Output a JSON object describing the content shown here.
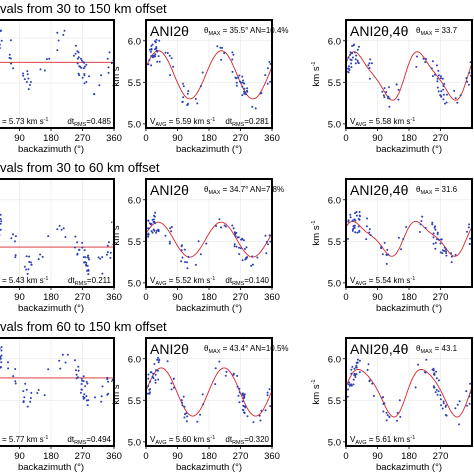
{
  "figure": {
    "row_titles": [
      "vals from 30 to 150 km offset",
      "vals from 30 to 60 km offset",
      "vals from 60 to 150 km offset"
    ],
    "xlabel": "backazimuth (°)",
    "ylabel": "km s",
    "ylabel_sup": "-1",
    "colors": {
      "points": "#2a3fb5",
      "fit": "#d9262b",
      "frame": "#000000"
    }
  },
  "chart_data": [
    {
      "type": "scatter",
      "row": 0,
      "col": 0,
      "model_label": "",
      "theta_text": "",
      "an_text": "",
      "vavg_prefix": "",
      "vavg_value": "= 5.73 km s",
      "vavg_sup": "-1",
      "dt_value": "dt",
      "dt_sub": "RMS",
      "dt_num": "=0.485",
      "xlim": [
        0,
        360
      ],
      "ylim": [
        5.0,
        6.2
      ],
      "xticks": [
        90,
        180,
        270,
        360
      ],
      "yticks": [],
      "fit": {
        "vavg": 5.73,
        "amp2": 0.0,
        "phase2": 0,
        "amp4": 0.0,
        "phase4": 0
      },
      "points_note": "scatter"
    },
    {
      "type": "scatter",
      "row": 0,
      "col": 1,
      "model_label": "ANI2θ",
      "theta_text": "θ",
      "theta_sub": "MAX",
      "theta_val": " = 35.5° AN=10.4%",
      "vavg_prefix": "V",
      "vavg_sub": "AVG",
      "vavg_value": "= 5.59 km s",
      "vavg_sup": "-1",
      "dt_value": "dt",
      "dt_sub": "RMS",
      "dt_num": "=0.281",
      "xlim": [
        0,
        360
      ],
      "ylim": [
        4.95,
        6.25
      ],
      "xticks": [
        0,
        90,
        180,
        270,
        360
      ],
      "yticks": [
        5.0,
        5.5,
        6.0
      ],
      "fit": {
        "vavg": 5.59,
        "amp2": 0.29,
        "phase2": 35.5,
        "amp4": 0.0,
        "phase4": 0
      }
    },
    {
      "type": "scatter",
      "row": 0,
      "col": 2,
      "model_label": "ANI2θ,4θ",
      "theta_text": "θ",
      "theta_sub": "MAX",
      "theta_val": " = 33.7",
      "vavg_prefix": "V",
      "vavg_sub": "AVG",
      "vavg_value": "= 5.58 km s",
      "vavg_sup": "-1",
      "dt_value": "",
      "dt_sub": "",
      "dt_num": "",
      "xlim": [
        0,
        360
      ],
      "ylim": [
        4.95,
        6.25
      ],
      "xticks": [
        0,
        90,
        180,
        270
      ],
      "yticks": [
        5.0,
        5.5,
        6.0
      ],
      "fit": {
        "vavg": 5.58,
        "amp2": 0.27,
        "phase2": 33.7,
        "amp4": 0.06,
        "phase4": 10
      }
    },
    {
      "type": "scatter",
      "row": 1,
      "col": 0,
      "model_label": "",
      "theta_text": "",
      "an_text": "",
      "vavg_prefix": "",
      "vavg_value": "= 5.43 km s",
      "vavg_sup": "-1",
      "dt_value": "dt",
      "dt_sub": "RMS",
      "dt_num": "=0.211",
      "xlim": [
        0,
        360
      ],
      "ylim": [
        4.95,
        6.25
      ],
      "xticks": [
        90,
        180,
        270,
        360
      ],
      "yticks": [],
      "fit": {
        "vavg": 5.43,
        "amp2": 0.0,
        "phase2": 0,
        "amp4": 0.0,
        "phase4": 0
      }
    },
    {
      "type": "scatter",
      "row": 1,
      "col": 1,
      "model_label": "ANI2θ",
      "theta_text": "θ",
      "theta_sub": "MAX",
      "theta_val": " = 34.7° AN=7.8%",
      "vavg_prefix": "V",
      "vavg_sub": "AVG",
      "vavg_value": "= 5.52 km s",
      "vavg_sup": "-1",
      "dt_value": "dt",
      "dt_sub": "RMS",
      "dt_num": "=0.140",
      "xlim": [
        0,
        360
      ],
      "ylim": [
        4.95,
        6.25
      ],
      "xticks": [
        0,
        90,
        180,
        270,
        360
      ],
      "yticks": [
        5.0,
        5.5,
        6.0
      ],
      "fit": {
        "vavg": 5.52,
        "amp2": 0.21,
        "phase2": 34.7,
        "amp4": 0.0,
        "phase4": 0
      }
    },
    {
      "type": "scatter",
      "row": 1,
      "col": 2,
      "model_label": "ANI2θ,4θ",
      "theta_text": "θ",
      "theta_sub": "MAX",
      "theta_val": " = 31.6",
      "vavg_prefix": "V",
      "vavg_sub": "AVG",
      "vavg_value": "= 5.54 km s",
      "vavg_sup": "-1",
      "dt_value": "",
      "dt_sub": "",
      "dt_num": "",
      "xlim": [
        0,
        360
      ],
      "ylim": [
        4.95,
        6.25
      ],
      "xticks": [
        0,
        90,
        180,
        270
      ],
      "yticks": [
        5.0,
        5.5,
        6.0
      ],
      "fit": {
        "vavg": 5.54,
        "amp2": 0.19,
        "phase2": 31.6,
        "amp4": 0.05,
        "phase4": 5
      }
    },
    {
      "type": "scatter",
      "row": 2,
      "col": 0,
      "model_label": "",
      "theta_text": "",
      "an_text": "",
      "vavg_prefix": "",
      "vavg_value": "= 5.77 km s",
      "vavg_sup": "-1",
      "dt_value": "dt",
      "dt_sub": "RMS",
      "dt_num": "=0.494",
      "xlim": [
        0,
        360
      ],
      "ylim": [
        4.95,
        6.25
      ],
      "xticks": [
        90,
        180,
        270,
        360
      ],
      "yticks": [],
      "fit": {
        "vavg": 5.77,
        "amp2": 0.0,
        "phase2": 0,
        "amp4": 0.0,
        "phase4": 0
      }
    },
    {
      "type": "scatter",
      "row": 2,
      "col": 1,
      "model_label": "ANI2θ",
      "theta_text": "θ",
      "theta_sub": "MAX",
      "theta_val": " = 43.4° AN=10.5%",
      "vavg_prefix": "V",
      "vavg_sub": "AVG",
      "vavg_value": "= 5.60 km s",
      "vavg_sup": "-1",
      "dt_value": "dt",
      "dt_sub": "RMS",
      "dt_num": "=0.320",
      "xlim": [
        0,
        360
      ],
      "ylim": [
        4.95,
        6.25
      ],
      "xticks": [
        0,
        90,
        180,
        270,
        360
      ],
      "yticks": [
        5.0,
        5.5,
        6.0
      ],
      "fit": {
        "vavg": 5.6,
        "amp2": 0.29,
        "phase2": 43.4,
        "amp4": 0.0,
        "phase4": 0
      }
    },
    {
      "type": "scatter",
      "row": 2,
      "col": 2,
      "model_label": "ANI2θ,4θ",
      "theta_text": "θ",
      "theta_sub": "MAX",
      "theta_val": " = 43.1",
      "vavg_prefix": "V",
      "vavg_sub": "AVG",
      "vavg_value": "= 5.61 km s",
      "vavg_sup": "-1",
      "dt_value": "",
      "dt_sub": "",
      "dt_num": "",
      "xlim": [
        0,
        360
      ],
      "ylim": [
        4.95,
        6.25
      ],
      "xticks": [
        0,
        90,
        180,
        270
      ],
      "yticks": [
        5.0,
        5.5,
        6.0
      ],
      "fit": {
        "vavg": 5.61,
        "amp2": 0.28,
        "phase2": 43.1,
        "amp4": 0.04,
        "phase4": 10
      }
    }
  ]
}
